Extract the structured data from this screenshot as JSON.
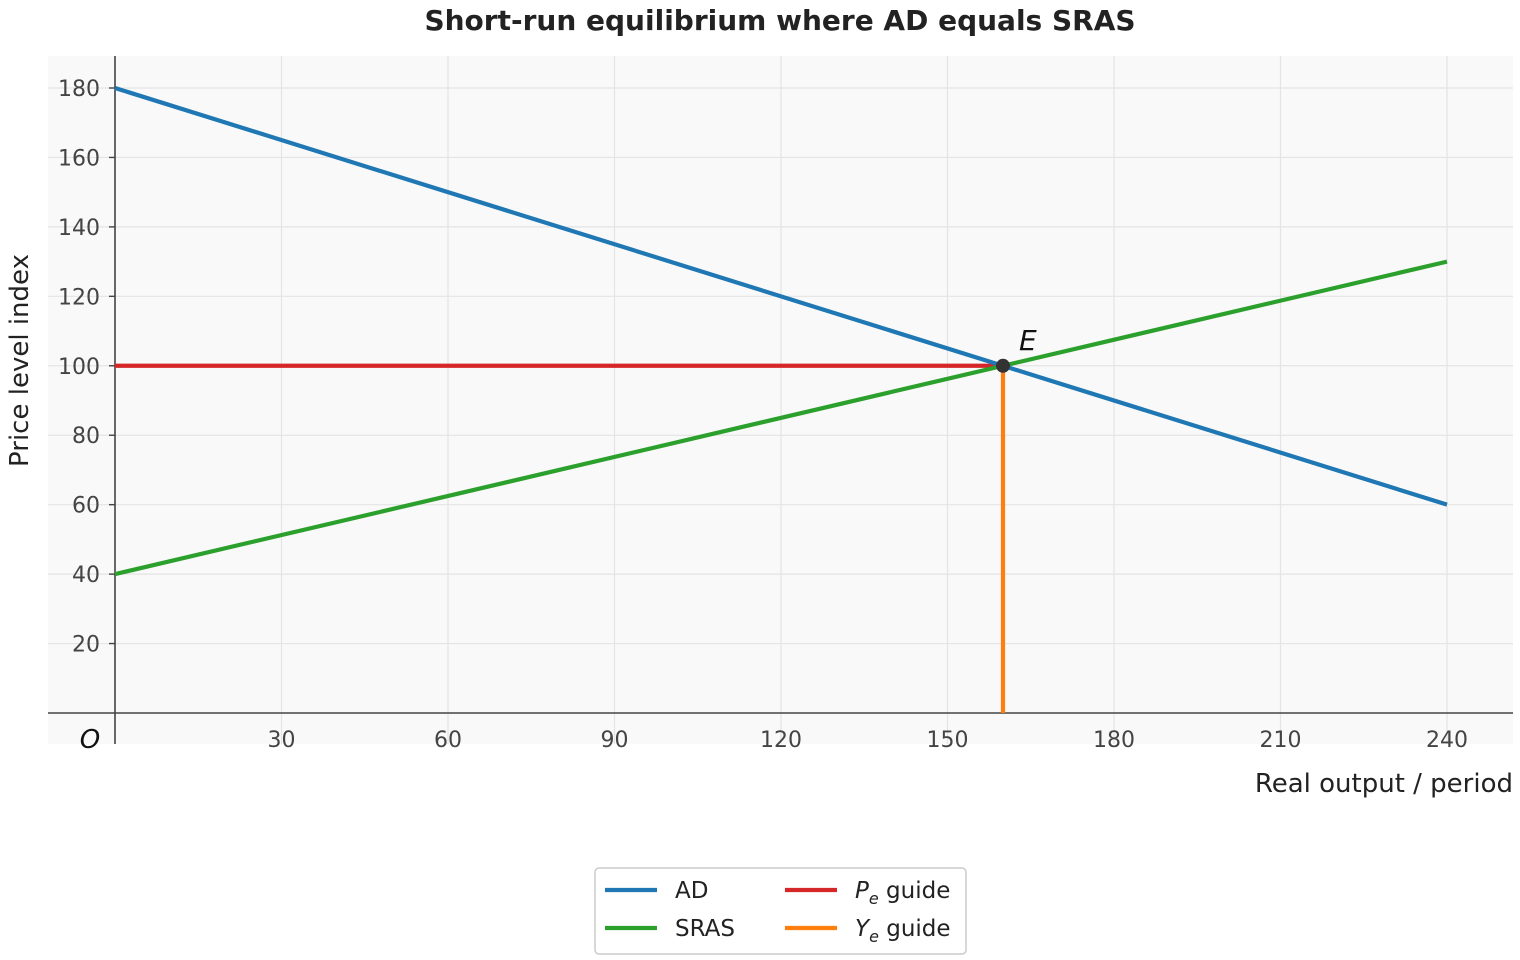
{
  "chart_data": {
    "type": "line",
    "title": "Short-run equilibrium where AD equals SRAS",
    "xlabel": "Real output / period",
    "ylabel": "Price level index",
    "origin_label": "O",
    "xlim": [
      -12,
      252
    ],
    "ylim": [
      -9,
      189
    ],
    "xticks": [
      30,
      60,
      90,
      120,
      150,
      180,
      210,
      240
    ],
    "yticks": [
      20,
      40,
      60,
      80,
      100,
      120,
      140,
      160,
      180
    ],
    "grid": true,
    "legend_position": "bottom-center",
    "series": [
      {
        "name": "AD",
        "color": "#1f77b4",
        "x": [
          0,
          240
        ],
        "y": [
          180,
          60
        ]
      },
      {
        "name": "SRAS",
        "color": "#2ca02c",
        "x": [
          0,
          240
        ],
        "y": [
          40,
          130
        ]
      },
      {
        "name": "P_e guide",
        "legend_main": "P",
        "legend_sub": "e",
        "legend_suffix": " guide",
        "color": "#d62728",
        "x": [
          0,
          160
        ],
        "y": [
          100,
          100
        ]
      },
      {
        "name": "Y_e guide",
        "legend_main": "Y",
        "legend_sub": "e",
        "legend_suffix": " guide",
        "color": "#ff7f0e",
        "x": [
          160,
          160
        ],
        "y": [
          0,
          100
        ]
      }
    ],
    "points": [
      {
        "label": "E",
        "x": 160,
        "y": 100,
        "color": "#333333"
      }
    ]
  }
}
